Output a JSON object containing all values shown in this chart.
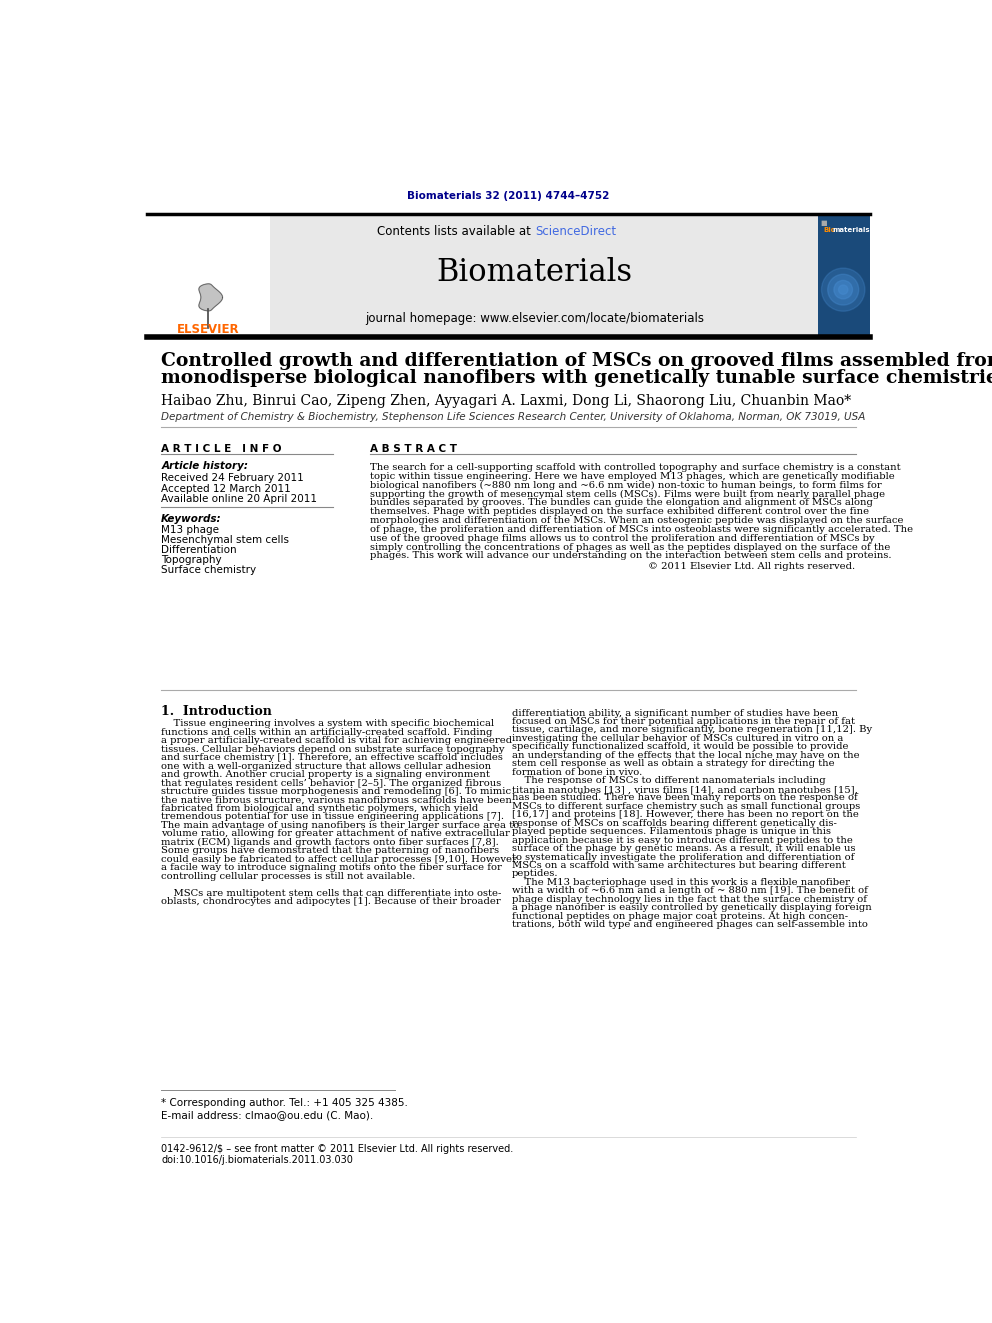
{
  "page_bg": "#ffffff",
  "journal_ref": "Biomaterials 32 (2011) 4744–4752",
  "journal_ref_color": "#00008B",
  "header_bg": "#e8e8e8",
  "header_text": "Contents lists available at ",
  "sciencedirect_text": "ScienceDirect",
  "sciencedirect_color": "#4169E1",
  "journal_name": "Biomaterials",
  "journal_homepage": "journal homepage: www.elsevier.com/locate/biomaterials",
  "title_line1": "Controlled growth and differentiation of MSCs on grooved films assembled from",
  "title_line2": "monodisperse biological nanofibers with genetically tunable surface chemistries",
  "authors": "Haibao Zhu, Binrui Cao, Zipeng Zhen, Ayyagari A. Laxmi, Dong Li, Shaorong Liu, Chuanbin Mao*",
  "affiliation": "Department of Chemistry & Biochemistry, Stephenson Life Sciences Research Center, University of Oklahoma, Norman, OK 73019, USA",
  "article_info_header": "ARTICLE INFO",
  "article_history_label": "Article history:",
  "received": "Received 24 February 2011",
  "accepted": "Accepted 12 March 2011",
  "available": "Available online 20 April 2011",
  "keywords_label": "Keywords:",
  "keywords": [
    "M13 phage",
    "Mesenchymal stem cells",
    "Differentiation",
    "Topography",
    "Surface chemistry"
  ],
  "abstract_header": "ABSTRACT",
  "abstract_text": "The search for a cell-supporting scaffold with controlled topography and surface chemistry is a constant\ntopic within tissue engineering. Here we have employed M13 phages, which are genetically modifiable\nbiological nanofibers (~880 nm long and ~6.6 nm wide) non-toxic to human beings, to form films for\nsupporting the growth of mesencymal stem cells (MSCs). Films were built from nearly parallel phage\nbundles separated by grooves. The bundles can guide the elongation and alignment of MSCs along\nthemselves. Phage with peptides displayed on the surface exhibited different control over the fine\nmorphologies and differentiation of the MSCs. When an osteogenic peptide was displayed on the surface\nof phage, the proliferation and differentiation of MSCs into osteoblasts were significantly accelerated. The\nuse of the grooved phage films allows us to control the proliferation and differentiation of MSCs by\nsimply controlling the concentrations of phages as well as the peptides displayed on the surface of the\nphages. This work will advance our understanding on the interaction between stem cells and proteins.",
  "abstract_copyright": "© 2011 Elsevier Ltd. All rights reserved.",
  "intro_header": "1.  Introduction",
  "intro_col1_lines": [
    "    Tissue engineering involves a system with specific biochemical",
    "functions and cells within an artificially-created scaffold. Finding",
    "a proper artificially-created scaffold is vital for achieving engineered",
    "tissues. Cellular behaviors depend on substrate surface topography",
    "and surface chemistry [1]. Therefore, an effective scaffold includes",
    "one with a well-organized structure that allows cellular adhesion",
    "and growth. Another crucial property is a signaling environment",
    "that regulates resident cells’ behavior [2–5]. The organized fibrous",
    "structure guides tissue morphogenesis and remodeling [6]. To mimic",
    "the native fibrous structure, various nanofibrous scaffolds have been",
    "fabricated from biological and synthetic polymers, which yield",
    "tremendous potential for use in tissue engineering applications [7].",
    "The main advantage of using nanofibers is their larger surface area to",
    "volume ratio, allowing for greater attachment of native extracellular",
    "matrix (ECM) ligands and growth factors onto fiber surfaces [7,8].",
    "Some groups have demonstrated that the patterning of nanofibers",
    "could easily be fabricated to affect cellular processes [9,10]. However,",
    "a facile way to introduce signaling motifs onto the fiber surface for",
    "controlling cellular processes is still not available.",
    "",
    "    MSCs are multipotent stem cells that can differentiate into oste-",
    "oblasts, chondrocytes and adipocytes [1]. Because of their broader"
  ],
  "intro_col2_lines": [
    "differentiation ability, a significant number of studies have been",
    "focused on MSCs for their potential applications in the repair of fat",
    "tissue, cartilage, and more significantly, bone regeneration [11,12]. By",
    "investigating the cellular behavior of MSCs cultured in vitro on a",
    "specifically functionalized scaffold, it would be possible to provide",
    "an understanding of the effects that the local niche may have on the",
    "stem cell response as well as obtain a strategy for directing the",
    "formation of bone in vivo.",
    "    The response of MSCs to different nanomaterials including",
    "titania nanotubes [13] , virus films [14], and carbon nanotubes [15],",
    "has been studied. There have been many reports on the response of",
    "MSCs to different surface chemistry such as small functional groups",
    "[16,17] and proteins [18]. However, there has been no report on the",
    "response of MSCs on scaffolds bearing different genetically dis-",
    "played peptide sequences. Filamentous phage is unique in this",
    "application because it is easy to introduce different peptides to the",
    "surface of the phage by genetic means. As a result, it will enable us",
    "to systematically investigate the proliferation and differentiation of",
    "MSCs on a scaffold with same architectures but bearing different",
    "peptides.",
    "    The M13 bacteriophage used in this work is a flexible nanofiber",
    "with a width of ~6.6 nm and a length of ~ 880 nm [19]. The benefit of",
    "phage display technology lies in the fact that the surface chemistry of",
    "a phage nanofiber is easily controlled by genetically displaying foreign",
    "functional peptides on phage major coat proteins. At high concen-",
    "trations, both wild type and engineered phages can self-assemble into"
  ],
  "footnote_star": "* Corresponding author. Tel.: +1 405 325 4385.",
  "footnote_email": "E-mail address: clmao@ou.edu (C. Mao).",
  "footer_left": "0142-9612/$ – see front matter © 2011 Elsevier Ltd. All rights reserved.",
  "footer_doi": "doi:10.1016/j.biomaterials.2011.03.030",
  "elsevier_orange": "#FF6600",
  "dark_gray": "#333333"
}
